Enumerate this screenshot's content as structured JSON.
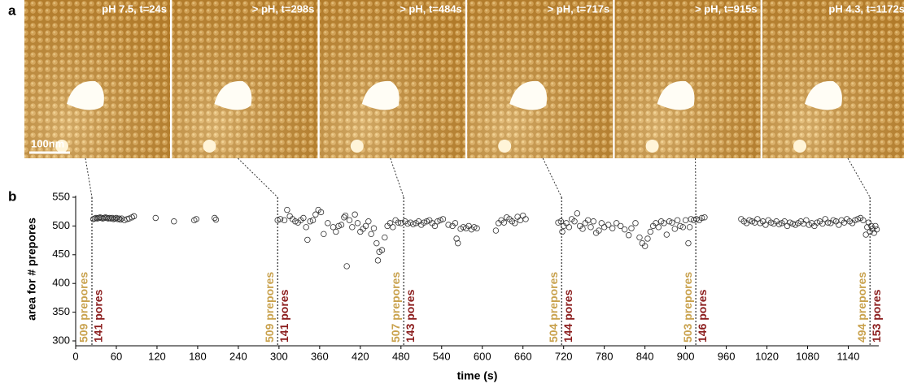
{
  "figure": {
    "panel_labels": [
      "a",
      "b"
    ],
    "scale_bar": "100nm",
    "images": [
      {
        "label": "pH 7.5, t=24s"
      },
      {
        "label": "> pH, t=298s"
      },
      {
        "label": "> pH, t=484s"
      },
      {
        "label": "> pH, t=717s"
      },
      {
        "label": "> pH, t=915s"
      },
      {
        "label": "pH 4.3, t=1172s"
      }
    ]
  },
  "chart_data": {
    "type": "scatter",
    "xlabel": "time (s)",
    "ylabel": "area for # prepores",
    "xlim": [
      0,
      1185
    ],
    "ylim": [
      300,
      550
    ],
    "xticks": [
      0,
      60,
      120,
      180,
      240,
      300,
      360,
      420,
      480,
      540,
      600,
      660,
      720,
      780,
      840,
      900,
      960,
      1020,
      1080,
      1140
    ],
    "yticks": [
      300,
      350,
      400,
      450,
      500,
      550
    ],
    "series": [
      {
        "color": "#333333",
        "x": [
          26,
          28,
          30,
          32,
          34,
          36,
          38,
          40,
          42,
          44,
          46,
          48,
          50,
          52,
          54,
          56,
          58,
          60,
          62,
          64,
          66,
          68,
          72,
          76,
          79,
          83,
          86,
          118,
          145,
          175,
          178,
          205,
          207,
          298,
          302,
          308,
          312,
          316,
          320,
          324,
          328,
          332,
          336,
          340,
          342,
          346,
          350,
          354,
          358,
          362,
          366,
          372,
          380,
          384,
          388,
          392,
          396,
          398,
          400,
          404,
          408,
          412,
          416,
          420,
          424,
          428,
          432,
          436,
          440,
          444,
          446,
          448,
          452,
          456,
          460,
          464,
          468,
          472,
          476,
          480,
          486,
          490,
          494,
          498,
          502,
          506,
          510,
          514,
          518,
          522,
          526,
          530,
          534,
          538,
          542,
          550,
          556,
          560,
          562,
          564,
          568,
          572,
          576,
          580,
          584,
          588,
          592,
          620,
          624,
          628,
          632,
          636,
          640,
          644,
          648,
          652,
          656,
          660,
          664,
          712,
          716,
          718,
          720,
          724,
          728,
          732,
          736,
          740,
          744,
          748,
          752,
          756,
          760,
          764,
          768,
          772,
          776,
          780,
          786,
          792,
          798,
          804,
          810,
          816,
          820,
          826,
          832,
          836,
          840,
          844,
          848,
          852,
          856,
          860,
          864,
          868,
          872,
          876,
          880,
          884,
          888,
          892,
          896,
          900,
          904,
          906,
          908,
          912,
          916,
          920,
          924,
          928,
          982,
          986,
          990,
          994,
          998,
          1002,
          1006,
          1010,
          1014,
          1018,
          1022,
          1026,
          1030,
          1034,
          1038,
          1042,
          1046,
          1050,
          1054,
          1058,
          1062,
          1066,
          1070,
          1074,
          1078,
          1082,
          1086,
          1090,
          1094,
          1098,
          1102,
          1106,
          1110,
          1114,
          1118,
          1122,
          1126,
          1130,
          1134,
          1138,
          1142,
          1146,
          1150,
          1154,
          1158,
          1162,
          1166,
          1168,
          1170,
          1172,
          1174,
          1176,
          1178,
          1180,
          1182
        ],
        "values": [
          512,
          513,
          514,
          513,
          514,
          515,
          514,
          513,
          514,
          515,
          514,
          513,
          514,
          513,
          514,
          512,
          513,
          514,
          512,
          513,
          511,
          513,
          510,
          512,
          513,
          515,
          517,
          514,
          508,
          510,
          512,
          514,
          511,
          510,
          512,
          510,
          528,
          517,
          512,
          508,
          506,
          510,
          514,
          498,
          476,
          508,
          510,
          520,
          528,
          524,
          486,
          505,
          498,
          490,
          500,
          502,
          515,
          518,
          430,
          510,
          498,
          520,
          505,
          490,
          495,
          500,
          508,
          486,
          496,
          470,
          440,
          455,
          458,
          480,
          500,
          505,
          498,
          510,
          506,
          505,
          508,
          504,
          506,
          503,
          505,
          508,
          502,
          506,
          508,
          510,
          505,
          500,
          508,
          510,
          512,
          502,
          500,
          505,
          478,
          470,
          495,
          498,
          496,
          500,
          494,
          498,
          496,
          492,
          505,
          510,
          506,
          515,
          512,
          508,
          505,
          516,
          510,
          518,
          512,
          506,
          508,
          490,
          500,
          505,
          498,
          512,
          508,
          522,
          500,
          495,
          505,
          510,
          498,
          508,
          488,
          492,
          505,
          498,
          502,
          496,
          505,
          500,
          494,
          484,
          496,
          505,
          480,
          470,
          465,
          478,
          490,
          500,
          505,
          498,
          508,
          505,
          485,
          508,
          506,
          495,
          510,
          500,
          498,
          510,
          470,
          498,
          512,
          510,
          512,
          510,
          514,
          515,
          512,
          508,
          505,
          510,
          508,
          506,
          512,
          505,
          508,
          502,
          510,
          506,
          504,
          508,
          503,
          505,
          508,
          500,
          506,
          504,
          502,
          505,
          508,
          504,
          510,
          502,
          505,
          500,
          506,
          508,
          504,
          512,
          506,
          505,
          510,
          508,
          502,
          510,
          506,
          512,
          508,
          505,
          510,
          512,
          514,
          510,
          485,
          498,
          506,
          490,
          500,
          495,
          488,
          500,
          494
        ]
      }
    ],
    "events": [
      {
        "x": 24,
        "prepores": "509 prepores",
        "pores": "141 pores"
      },
      {
        "x": 298,
        "prepores": "509 prepores",
        "pores": "141 pores"
      },
      {
        "x": 484,
        "prepores": "507 prepores",
        "pores": "143 pores"
      },
      {
        "x": 717,
        "prepores": "504 prepores",
        "pores": "144 pores"
      },
      {
        "x": 915,
        "prepores": "503 prepores",
        "pores": "146 pores"
      },
      {
        "x": 1172,
        "prepores": "494 prepores",
        "pores": "153 pores"
      }
    ],
    "prepores_color": "#c9a24e",
    "pores_color": "#8b1c1c"
  }
}
